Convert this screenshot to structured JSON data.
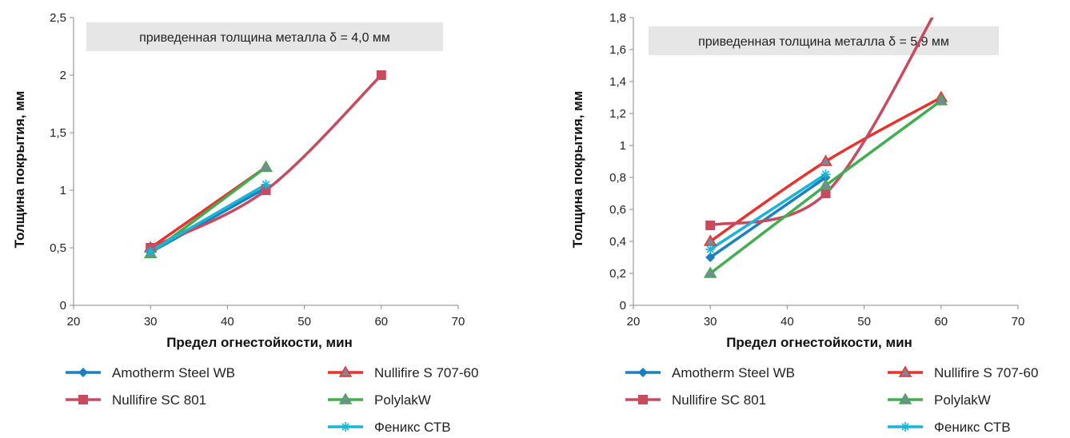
{
  "chart_data": [
    {
      "type": "line",
      "annotation": "приведенная толщина металла δ = 4,0 мм",
      "xlabel": "Предел огнестойкости, мин",
      "ylabel": "Толщина покрытия, мм",
      "xlim": [
        20,
        70
      ],
      "ylim": [
        0,
        2.5
      ],
      "x_ticks": [
        "20",
        "30",
        "40",
        "50",
        "60",
        "70"
      ],
      "y_ticks": [
        "0",
        "0,5",
        "1",
        "1,5",
        "2",
        "2,5"
      ],
      "legend_position": "bottom",
      "series": [
        {
          "name": "Amotherm Steel WB",
          "color": "#1b7fc4",
          "marker": "diamond",
          "smooth": false,
          "x": [
            30,
            45
          ],
          "y": [
            0.46,
            1.02
          ]
        },
        {
          "name": "Nullifire S 707-60",
          "color": "#e8322b",
          "marker": "triangle",
          "smooth": false,
          "x": [
            30,
            45
          ],
          "y": [
            0.5,
            1.2
          ]
        },
        {
          "name": "Nullifire SC 801",
          "color": "#c94a5f",
          "marker": "square",
          "smooth": true,
          "x": [
            30,
            45,
            60
          ],
          "y": [
            0.5,
            1.0,
            2.0
          ]
        },
        {
          "name": "PolylakW",
          "color": "#3fae4f",
          "marker": "triangle",
          "smooth": false,
          "x": [
            30,
            45
          ],
          "y": [
            0.45,
            1.2
          ]
        },
        {
          "name": "Феникс СТВ",
          "color": "#17b6d6",
          "marker": "asterisk",
          "smooth": false,
          "x": [
            30,
            45
          ],
          "y": [
            0.47,
            1.05
          ]
        }
      ]
    },
    {
      "type": "line",
      "annotation": "приведенная толщина металла δ = 5,9 мм",
      "xlabel": "Предел огнестойкости, мин",
      "ylabel": "Толщина покрытия, мм",
      "xlim": [
        20,
        70
      ],
      "ylim": [
        0,
        1.8
      ],
      "x_ticks": [
        "20",
        "30",
        "40",
        "50",
        "60",
        "70"
      ],
      "y_ticks": [
        "0",
        "0,2",
        "0,4",
        "0,6",
        "0,8",
        "1",
        "1,2",
        "1,4",
        "1,6",
        "1,8"
      ],
      "legend_position": "bottom",
      "series": [
        {
          "name": "Amotherm Steel WB",
          "color": "#1b7fc4",
          "marker": "diamond",
          "smooth": false,
          "x": [
            30,
            45
          ],
          "y": [
            0.3,
            0.8
          ]
        },
        {
          "name": "Nullifire S 707-60",
          "color": "#e8322b",
          "marker": "triangle",
          "smooth": true,
          "x": [
            30,
            45,
            60
          ],
          "y": [
            0.4,
            0.9,
            1.3
          ]
        },
        {
          "name": "Nullifire SC 801",
          "color": "#c94a5f",
          "marker": "square",
          "smooth": true,
          "x": [
            30,
            45,
            60
          ],
          "y": [
            0.5,
            0.7,
            1.9
          ]
        },
        {
          "name": "PolylakW",
          "color": "#3fae4f",
          "marker": "triangle",
          "smooth": false,
          "x": [
            30,
            45,
            60
          ],
          "y": [
            0.2,
            0.75,
            1.28
          ]
        },
        {
          "name": "Феникс СТВ",
          "color": "#17b6d6",
          "marker": "asterisk",
          "smooth": false,
          "x": [
            30,
            45
          ],
          "y": [
            0.35,
            0.82
          ]
        }
      ]
    }
  ]
}
